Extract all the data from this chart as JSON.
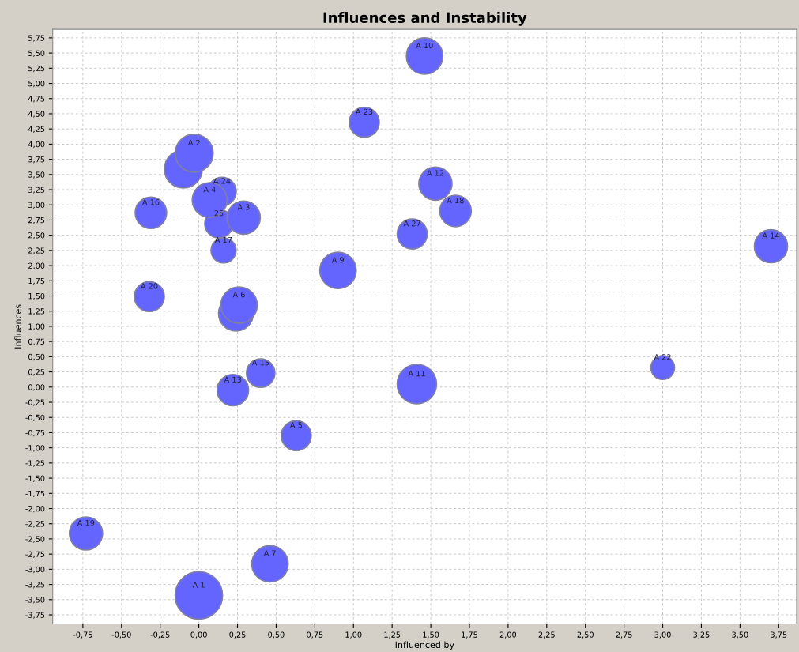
{
  "chart_data": {
    "type": "bubble",
    "title": "Influences and Instability",
    "xlabel": "Influenced by",
    "ylabel": "Influences",
    "x": [
      0.0,
      -0.1,
      -0.03,
      0.15,
      0.13,
      0.07,
      0.29,
      -0.31,
      0.16,
      -0.32,
      0.24,
      0.26,
      0.9,
      1.46,
      1.07,
      1.53,
      1.66,
      1.38,
      3.7,
      3.0,
      1.41,
      0.4,
      0.22,
      0.63,
      -0.73,
      0.46
    ],
    "values": [
      -3.43,
      3.59,
      3.85,
      3.22,
      2.69,
      3.08,
      2.79,
      2.87,
      2.25,
      1.49,
      1.21,
      1.35,
      1.92,
      5.45,
      4.36,
      3.35,
      2.9,
      2.52,
      2.32,
      0.32,
      0.05,
      0.23,
      -0.05,
      -0.8,
      -2.41,
      -2.91
    ],
    "sizes": [
      1,
      0.64,
      0.64,
      0.36,
      0.36,
      0.54,
      0.49,
      0.44,
      0.28,
      0.4,
      0.54,
      0.59,
      0.59,
      0.59,
      0.4,
      0.49,
      0.44,
      0.4,
      0.49,
      0.25,
      0.69,
      0.36,
      0.44,
      0.4,
      0.49,
      0.59
    ],
    "annotations": [
      {
        "text": "A 1",
        "x": 0.0,
        "y": -3.43
      },
      {
        "text": "A 2",
        "x": -0.03,
        "y": 3.85
      },
      {
        "text": "A 24",
        "x": 0.15,
        "y": 3.22
      },
      {
        "text": "25",
        "x": 0.13,
        "y": 2.69
      },
      {
        "text": "A 4",
        "x": 0.07,
        "y": 3.08
      },
      {
        "text": "A 3",
        "x": 0.29,
        "y": 2.79
      },
      {
        "text": "A 16",
        "x": -0.31,
        "y": 2.87
      },
      {
        "text": "A 17",
        "x": 0.16,
        "y": 2.25
      },
      {
        "text": "A 20",
        "x": -0.32,
        "y": 1.49
      },
      {
        "text": "A 6",
        "x": 0.26,
        "y": 1.35
      },
      {
        "text": "A 9",
        "x": 0.9,
        "y": 1.92
      },
      {
        "text": "A 10",
        "x": 1.46,
        "y": 5.45
      },
      {
        "text": "A 23",
        "x": 1.07,
        "y": 4.36
      },
      {
        "text": "A 12",
        "x": 1.53,
        "y": 3.35
      },
      {
        "text": "A 18",
        "x": 1.66,
        "y": 2.9
      },
      {
        "text": "A 27",
        "x": 1.38,
        "y": 2.52
      },
      {
        "text": "A 14",
        "x": 3.7,
        "y": 2.32
      },
      {
        "text": "A 22",
        "x": 3.0,
        "y": 0.32
      },
      {
        "text": "A 11",
        "x": 1.41,
        "y": 0.05
      },
      {
        "text": "A 15",
        "x": 0.4,
        "y": 0.23
      },
      {
        "text": "A 13",
        "x": 0.22,
        "y": -0.05
      },
      {
        "text": "A 5",
        "x": 0.63,
        "y": -0.8
      },
      {
        "text": "A 19",
        "x": -0.73,
        "y": -2.41
      },
      {
        "text": "A 7",
        "x": 0.46,
        "y": -2.91
      }
    ],
    "color": "#6464ff",
    "xlim": [
      -0.945,
      3.866
    ],
    "ylim": [
      -3.9,
      5.89
    ],
    "xticks": [
      {
        "value": -0.75,
        "label": "-0,75"
      },
      {
        "value": -0.5,
        "label": "-0,50"
      },
      {
        "value": -0.25,
        "label": "-0,25"
      },
      {
        "value": 0,
        "label": "0,00"
      },
      {
        "value": 0.25,
        "label": "0,25"
      },
      {
        "value": 0.5,
        "label": "0,50"
      },
      {
        "value": 0.75,
        "label": "0,75"
      },
      {
        "value": 1,
        "label": "1,00"
      },
      {
        "value": 1.25,
        "label": "1,25"
      },
      {
        "value": 1.5,
        "label": "1,50"
      },
      {
        "value": 1.75,
        "label": "1,75"
      },
      {
        "value": 2,
        "label": "2,00"
      },
      {
        "value": 2.25,
        "label": "2,25"
      },
      {
        "value": 2.5,
        "label": "2,50"
      },
      {
        "value": 2.75,
        "label": "2,75"
      },
      {
        "value": 3,
        "label": "3,00"
      },
      {
        "value": 3.25,
        "label": "3,25"
      },
      {
        "value": 3.5,
        "label": "3,50"
      },
      {
        "value": 3.75,
        "label": "3,75"
      }
    ],
    "yticks": [
      {
        "value": -3.75,
        "label": "-3,75"
      },
      {
        "value": -3.5,
        "label": "-3,50"
      },
      {
        "value": -3.25,
        "label": "-3,25"
      },
      {
        "value": -3,
        "label": "-3,00"
      },
      {
        "value": -2.75,
        "label": "-2,75"
      },
      {
        "value": -2.5,
        "label": "-2,50"
      },
      {
        "value": -2.25,
        "label": "-2,25"
      },
      {
        "value": -2,
        "label": "-2,00"
      },
      {
        "value": -1.75,
        "label": "-1,75"
      },
      {
        "value": -1.5,
        "label": "-1,50"
      },
      {
        "value": -1.25,
        "label": "-1,25"
      },
      {
        "value": -1,
        "label": "-1,00"
      },
      {
        "value": -0.75,
        "label": "-0,75"
      },
      {
        "value": -0.5,
        "label": "-0,50"
      },
      {
        "value": -0.25,
        "label": "-0,25"
      },
      {
        "value": 0,
        "label": "0,00"
      },
      {
        "value": 0.25,
        "label": "0,25"
      },
      {
        "value": 0.5,
        "label": "0,50"
      },
      {
        "value": 0.75,
        "label": "0,75"
      },
      {
        "value": 1,
        "label": "1,00"
      },
      {
        "value": 1.25,
        "label": "1,25"
      },
      {
        "value": 1.5,
        "label": "1,50"
      },
      {
        "value": 1.75,
        "label": "1,75"
      },
      {
        "value": 2,
        "label": "2,00"
      },
      {
        "value": 2.25,
        "label": "2,25"
      },
      {
        "value": 2.5,
        "label": "2,50"
      },
      {
        "value": 2.75,
        "label": "2,75"
      },
      {
        "value": 3,
        "label": "3,00"
      },
      {
        "value": 3.25,
        "label": "3,25"
      },
      {
        "value": 3.5,
        "label": "3,50"
      },
      {
        "value": 3.75,
        "label": "3,75"
      },
      {
        "value": 4,
        "label": "4,00"
      },
      {
        "value": 4.25,
        "label": "4,25"
      },
      {
        "value": 4.5,
        "label": "4,50"
      },
      {
        "value": 4.75,
        "label": "4,75"
      },
      {
        "value": 5,
        "label": "5,00"
      },
      {
        "value": 5.25,
        "label": "5,25"
      },
      {
        "value": 5.5,
        "label": "5,50"
      },
      {
        "value": 5.75,
        "label": "5,75"
      }
    ],
    "grid": true
  }
}
